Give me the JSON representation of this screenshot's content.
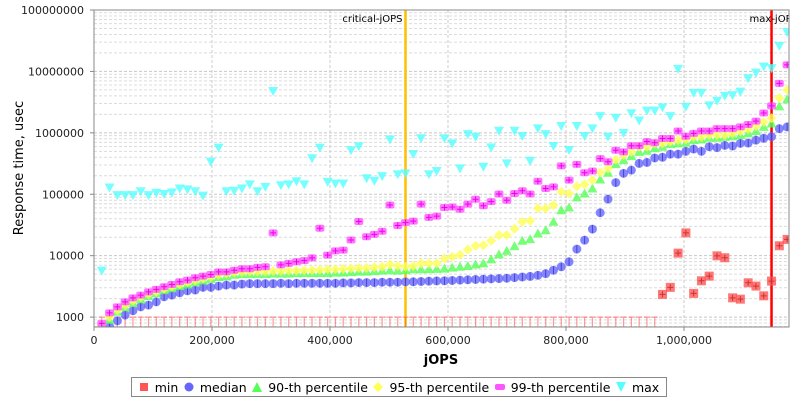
{
  "chart_data": {
    "type": "scatter",
    "xlabel": "jOPS",
    "ylabel": "Response time, usec",
    "xlim": [
      0,
      1178000
    ],
    "ylim": [
      690,
      100000000
    ],
    "yscale": "log",
    "grid": true,
    "legend_position": "bottom",
    "x_ticks": [
      0,
      200000,
      400000,
      600000,
      800000,
      1000000
    ],
    "x_tick_labels": [
      "0",
      "200,000",
      "400,000",
      "600,000",
      "800,000",
      "1,000,000"
    ],
    "y_ticks": [
      1000,
      10000,
      100000,
      1000000,
      10000000,
      100000000
    ],
    "y_tick_labels": [
      "1000",
      "10000",
      "100000",
      "1000000",
      "10000000",
      "100000000"
    ],
    "annotations": [
      {
        "label": "critical-jOPS",
        "x": 528000,
        "color": "#ffc000"
      },
      {
        "label": "max-jOPS",
        "x": 1148400,
        "color": "#ff0000"
      }
    ],
    "x": [
      13200,
      26400,
      39600,
      52800,
      66000,
      79200,
      92400,
      105600,
      118800,
      132000,
      145200,
      158400,
      171600,
      184800,
      198000,
      211200,
      224400,
      237600,
      250800,
      264000,
      277200,
      290400,
      303600,
      316800,
      330000,
      343200,
      356400,
      369600,
      382800,
      396000,
      409200,
      422400,
      435600,
      448800,
      462000,
      475200,
      488400,
      501600,
      514800,
      528000,
      541200,
      554400,
      567600,
      580800,
      594000,
      607200,
      620400,
      633600,
      646800,
      660000,
      673200,
      686400,
      699600,
      712800,
      726000,
      739200,
      752400,
      765600,
      778800,
      792000,
      805200,
      818400,
      831600,
      844800,
      858000,
      871200,
      884400,
      897600,
      910800,
      924000,
      937200,
      950400,
      963600,
      976800,
      990000,
      1003200,
      1016400,
      1029600,
      1042800,
      1056000,
      1069200,
      1082400,
      1095600,
      1108800,
      1122000,
      1135200,
      1148400,
      1161600,
      1174800
    ],
    "series": [
      {
        "name": "min",
        "color": "#ff5555",
        "marker": "square",
        "values": [
          null,
          null,
          null,
          null,
          null,
          null,
          null,
          null,
          null,
          null,
          null,
          null,
          null,
          null,
          null,
          null,
          null,
          null,
          null,
          null,
          null,
          null,
          null,
          null,
          null,
          null,
          null,
          null,
          null,
          null,
          null,
          null,
          null,
          null,
          null,
          null,
          null,
          null,
          null,
          null,
          null,
          null,
          null,
          null,
          null,
          null,
          null,
          null,
          null,
          null,
          null,
          null,
          null,
          null,
          null,
          null,
          null,
          null,
          null,
          null,
          null,
          null,
          null,
          null,
          null,
          null,
          null,
          null,
          null,
          null,
          null,
          null,
          2340,
          3050,
          11000,
          23500,
          2430,
          3900,
          4650,
          9950,
          9250,
          2060,
          1960,
          3620,
          3200,
          2220,
          3860,
          14500,
          18400
        ]
      },
      {
        "name": "median",
        "color": "#6666ff",
        "marker": "circle",
        "values": [
          null,
          700,
          870,
          1080,
          1270,
          1470,
          1570,
          1770,
          2140,
          2280,
          2490,
          2680,
          2760,
          3050,
          3050,
          3200,
          3320,
          3320,
          3450,
          3500,
          3500,
          3500,
          3500,
          3550,
          3500,
          3550,
          3550,
          3550,
          3550,
          3550,
          3550,
          3600,
          3600,
          3650,
          3650,
          3650,
          3700,
          3700,
          3700,
          3750,
          3760,
          3800,
          3850,
          3880,
          3900,
          3950,
          4000,
          4050,
          4100,
          4150,
          4200,
          4250,
          4300,
          4400,
          4500,
          4600,
          4800,
          5100,
          5800,
          6600,
          7950,
          12800,
          17900,
          27100,
          50000,
          83500,
          155000,
          219000,
          247000,
          318000,
          330000,
          390000,
          400000,
          450000,
          450000,
          500000,
          545000,
          500000,
          594000,
          575000,
          625000,
          610000,
          675000,
          683000,
          760000,
          815000,
          865000,
          1170000,
          1250000
        ]
      },
      {
        "name": "90-th percentile",
        "color": "#55ff55",
        "marker": "triangle-up",
        "values": [
          null,
          900,
          1220,
          1450,
          1700,
          1950,
          2200,
          2450,
          2750,
          2950,
          3200,
          3400,
          3700,
          3950,
          4200,
          4500,
          4600,
          4900,
          5000,
          5000,
          5000,
          5000,
          5100,
          5100,
          5100,
          5200,
          5200,
          5200,
          5200,
          5200,
          5300,
          5300,
          5400,
          5500,
          5500,
          5600,
          5700,
          5800,
          5700,
          5800,
          6000,
          6000,
          6050,
          6100,
          6150,
          6400,
          6600,
          6800,
          7200,
          7500,
          8700,
          10500,
          12000,
          14300,
          17500,
          18600,
          23000,
          26000,
          35600,
          55000,
          61000,
          89000,
          103000,
          124000,
          174000,
          224000,
          310000,
          360000,
          418000,
          490000,
          510000,
          560000,
          595000,
          655000,
          675000,
          690000,
          760000,
          780000,
          830000,
          830000,
          860000,
          880000,
          920000,
          980000,
          1070000,
          1250000,
          1420000,
          2700000,
          3500000
        ]
      },
      {
        "name": "95-th percentile",
        "color": "#ffff55",
        "marker": "diamond",
        "values": [
          750,
          1000,
          1300,
          1550,
          1850,
          2100,
          2350,
          2600,
          2900,
          3150,
          3400,
          3700,
          3950,
          4250,
          4500,
          4900,
          5100,
          5300,
          5400,
          5500,
          5500,
          5500,
          5600,
          5600,
          5700,
          5700,
          5800,
          5800,
          5900,
          6000,
          6000,
          6100,
          6200,
          6300,
          6300,
          6500,
          6600,
          7200,
          6800,
          6600,
          6800,
          7500,
          7500,
          7500,
          9000,
          9600,
          10300,
          12600,
          14500,
          14800,
          17500,
          21600,
          21600,
          27500,
          35600,
          37000,
          59000,
          59000,
          67000,
          110000,
          103000,
          135000,
          145000,
          170000,
          227000,
          264000,
          366000,
          433000,
          490000,
          595000,
          595000,
          675000,
          675000,
          720000,
          760000,
          780000,
          860000,
          860000,
          920000,
          920000,
          920000,
          980000,
          1060000,
          1150000,
          1290000,
          1500000,
          1740000,
          3700000,
          5000000
        ]
      },
      {
        "name": "99-th percentile",
        "color": "#ff55ff",
        "marker": "square-plus",
        "values": [
          790,
          1170,
          1470,
          1770,
          2060,
          2280,
          2580,
          2830,
          3120,
          3400,
          3760,
          4000,
          4370,
          4650,
          4950,
          5460,
          5460,
          5800,
          6120,
          6120,
          6450,
          6600,
          23500,
          7100,
          7500,
          7950,
          8300,
          9200,
          28000,
          10200,
          12000,
          12300,
          18000,
          36000,
          20300,
          22200,
          25000,
          67000,
          31000,
          34500,
          36600,
          69000,
          42000,
          44000,
          61000,
          62000,
          57000,
          69000,
          83000,
          65000,
          76000,
          101000,
          80000,
          103000,
          114000,
          101000,
          163000,
          124000,
          132000,
          290000,
          170000,
          307000,
          224000,
          239000,
          380000,
          338000,
          520000,
          490000,
          616000,
          616000,
          720000,
          690000,
          810000,
          810000,
          1070000,
          880000,
          980000,
          1070000,
          1070000,
          1170000,
          1170000,
          1170000,
          1250000,
          1370000,
          1550000,
          2100000,
          2750000,
          6400000,
          12800000
        ]
      },
      {
        "name": "max",
        "color": "#55ffff",
        "marker": "triangle-down",
        "values": [
          5700,
          129000,
          97000,
          97000,
          97000,
          112000,
          97000,
          106000,
          101000,
          107000,
          124000,
          120000,
          112000,
          95000,
          338000,
          575000,
          112000,
          114000,
          124000,
          145000,
          112000,
          132000,
          4800000,
          140000,
          145000,
          163000,
          145000,
          385000,
          575000,
          159000,
          150000,
          150000,
          520000,
          606000,
          182000,
          166000,
          197000,
          780000,
          212000,
          219000,
          452000,
          815000,
          212000,
          239000,
          815000,
          675000,
          264000,
          955000,
          865000,
          281000,
          580000,
          1080000,
          318000,
          1080000,
          890000,
          350000,
          1180000,
          955000,
          610000,
          1290000,
          525000,
          1290000,
          890000,
          1180000,
          1870000,
          865000,
          1760000,
          1000000,
          2080000,
          1590000,
          2300000,
          2300000,
          2600000,
          1870000,
          11000000,
          2660000,
          4470000,
          4470000,
          2800000,
          3330000,
          4000000,
          4120000,
          4680000,
          7740000,
          9580000,
          12000000,
          11300000,
          26000000,
          43600000
        ]
      }
    ]
  }
}
